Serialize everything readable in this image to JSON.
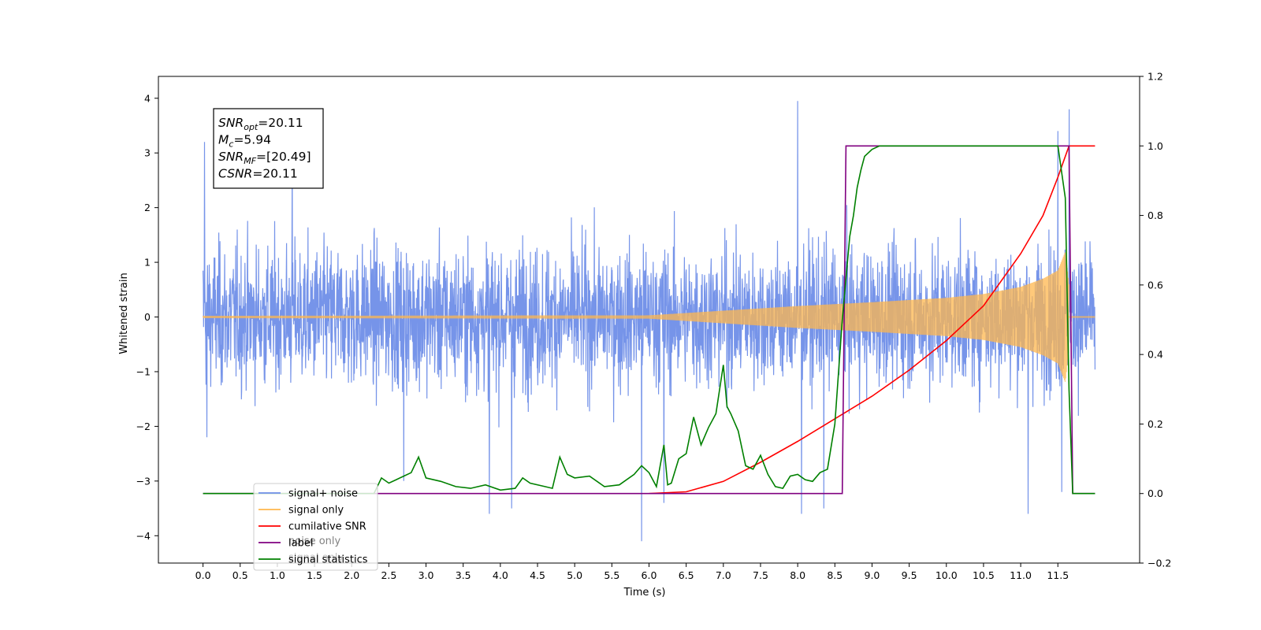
{
  "chart_data": {
    "type": "line",
    "xlabel": "Time (s)",
    "ylabel": "Whitened strain",
    "xlim": [
      -0.6,
      12.6
    ],
    "ylim": [
      -4.5,
      4.4
    ],
    "y2lim": [
      -0.2,
      1.2
    ],
    "xticks": [
      "0.0",
      "0.5",
      "1.0",
      "1.5",
      "2.0",
      "2.5",
      "3.0",
      "3.5",
      "4.0",
      "4.5",
      "5.0",
      "5.5",
      "6.0",
      "6.5",
      "7.0",
      "7.5",
      "8.0",
      "8.5",
      "9.0",
      "9.5",
      "10.0",
      "10.5",
      "11.0",
      "11.5"
    ],
    "yticks": [
      "4",
      "3",
      "2",
      "1",
      "0",
      "−1",
      "−2",
      "−3",
      "−4"
    ],
    "y2ticks": [
      "1.2",
      "1.0",
      "0.8",
      "0.6",
      "0.4",
      "0.2",
      "0.0",
      "−0.2"
    ],
    "annotation": {
      "lines": [
        {
          "base": "SNR",
          "sub": "opt",
          "value": "=20.11"
        },
        {
          "base": "M",
          "sub": "c",
          "value": "=5.94"
        },
        {
          "base": "SNR",
          "sub": "MF",
          "value": "=[20.49]"
        },
        {
          "base": "CSNR",
          "sub": "",
          "value": "=20.11"
        }
      ]
    },
    "legend": {
      "position": "lower-left",
      "entries": [
        {
          "label": "signal+ noise",
          "color": "#6f8ee8"
        },
        {
          "label": "signal only",
          "color": "#ffb74d"
        },
        {
          "label": "cumilative SNR",
          "color": "#ff0000"
        },
        {
          "label": "label",
          "color": "#800080"
        },
        {
          "label": "signal statistics",
          "color": "#008000"
        }
      ],
      "ghost_labels": [
        "noise only",
        "signal only"
      ]
    },
    "series": [
      {
        "name": "signal+ noise",
        "axis": "left",
        "color": "#6f8ee8",
        "t_start": 0.0,
        "t_end": 12.0,
        "noise_peak": 2.4,
        "spikes": [
          [
            0.02,
            3.2
          ],
          [
            0.05,
            -2.2
          ],
          [
            1.2,
            3.0
          ],
          [
            2.7,
            -3.0
          ],
          [
            3.85,
            -3.6
          ],
          [
            4.15,
            -3.5
          ],
          [
            5.9,
            -4.1
          ],
          [
            6.2,
            -3.4
          ],
          [
            8.05,
            -3.6
          ],
          [
            8.35,
            -3.5
          ],
          [
            8.0,
            3.95
          ],
          [
            11.1,
            -3.6
          ],
          [
            11.5,
            3.4
          ],
          [
            11.65,
            3.8
          ],
          [
            11.55,
            -3.2
          ]
        ]
      },
      {
        "name": "signal only",
        "axis": "left",
        "color": "#ffb74d",
        "t_start": 0.0,
        "t_end": 11.65,
        "envelope": [
          [
            0.0,
            0.02
          ],
          [
            6.0,
            0.03
          ],
          [
            8.0,
            0.2
          ],
          [
            9.0,
            0.27
          ],
          [
            10.0,
            0.35
          ],
          [
            10.5,
            0.42
          ],
          [
            11.0,
            0.55
          ],
          [
            11.3,
            0.7
          ],
          [
            11.5,
            0.85
          ],
          [
            11.6,
            1.2
          ],
          [
            11.65,
            0.6
          ]
        ]
      },
      {
        "name": "cumilative SNR",
        "axis": "right",
        "color": "#ff0000",
        "x": [
          6.0,
          6.5,
          7.0,
          7.5,
          8.0,
          8.5,
          9.0,
          9.5,
          10.0,
          10.5,
          11.0,
          11.3,
          11.5,
          11.65,
          12.0
        ],
        "y": [
          0.0,
          0.005,
          0.035,
          0.09,
          0.15,
          0.215,
          0.28,
          0.355,
          0.44,
          0.54,
          0.69,
          0.8,
          0.91,
          1.0,
          1.0
        ]
      },
      {
        "name": "label",
        "axis": "right",
        "color": "#800080",
        "x": [
          0.0,
          8.6,
          8.65,
          11.65,
          11.7,
          12.0
        ],
        "y": [
          0.0,
          0.0,
          1.0,
          1.0,
          0.0,
          0.0
        ]
      },
      {
        "name": "signal statistics",
        "axis": "right",
        "color": "#008000",
        "x": [
          0.0,
          2.3,
          2.4,
          2.5,
          2.6,
          2.7,
          2.8,
          2.9,
          3.0,
          3.2,
          3.4,
          3.6,
          3.8,
          4.0,
          4.2,
          4.3,
          4.4,
          4.6,
          4.7,
          4.8,
          4.9,
          5.0,
          5.2,
          5.4,
          5.6,
          5.8,
          5.9,
          6.0,
          6.1,
          6.2,
          6.25,
          6.3,
          6.4,
          6.5,
          6.6,
          6.7,
          6.8,
          6.9,
          7.0,
          7.05,
          7.1,
          7.2,
          7.3,
          7.4,
          7.5,
          7.6,
          7.7,
          7.8,
          7.9,
          8.0,
          8.1,
          8.2,
          8.3,
          8.4,
          8.5,
          8.6,
          8.7,
          8.75,
          8.8,
          8.85,
          8.9,
          9.0,
          9.1,
          9.2,
          9.3,
          9.4,
          9.5,
          9.6,
          9.8,
          10.0,
          11.0,
          11.5,
          11.6,
          11.65,
          11.7,
          11.8,
          12.0
        ],
        "y": [
          0.0,
          0.0,
          0.045,
          0.03,
          0.04,
          0.05,
          0.06,
          0.105,
          0.045,
          0.035,
          0.02,
          0.015,
          0.025,
          0.01,
          0.015,
          0.045,
          0.03,
          0.02,
          0.015,
          0.105,
          0.055,
          0.045,
          0.05,
          0.02,
          0.025,
          0.055,
          0.08,
          0.06,
          0.02,
          0.14,
          0.025,
          0.03,
          0.1,
          0.115,
          0.22,
          0.14,
          0.19,
          0.23,
          0.37,
          0.25,
          0.23,
          0.18,
          0.08,
          0.07,
          0.11,
          0.055,
          0.02,
          0.015,
          0.05,
          0.055,
          0.04,
          0.035,
          0.06,
          0.07,
          0.2,
          0.5,
          0.74,
          0.8,
          0.88,
          0.93,
          0.97,
          0.99,
          1.0,
          1.0,
          1.0,
          1.0,
          1.0,
          1.0,
          1.0,
          1.0,
          1.0,
          1.0,
          0.85,
          0.3,
          0.0,
          0.0,
          0.0
        ]
      }
    ]
  }
}
